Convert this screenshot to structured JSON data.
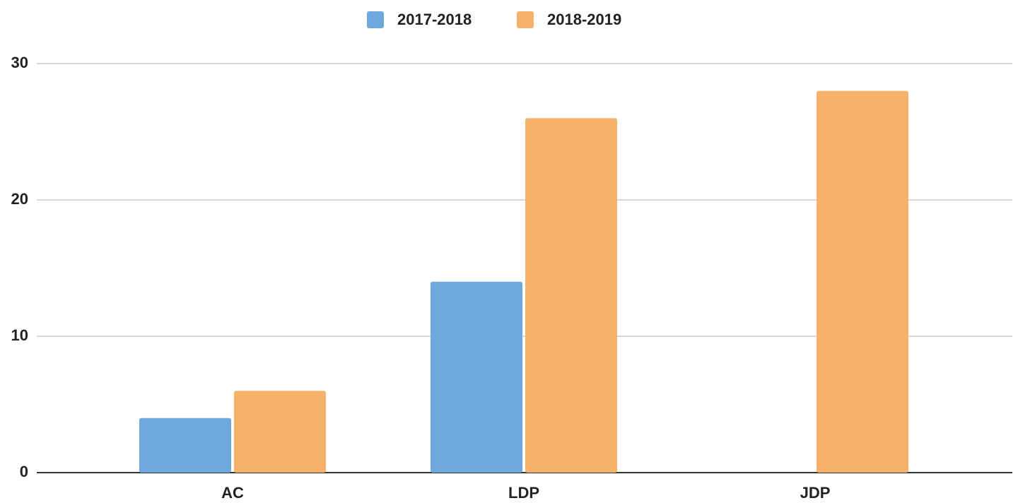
{
  "chart_data": {
    "type": "bar",
    "categories": [
      "AC",
      "LDP",
      "JDP"
    ],
    "series": [
      {
        "name": "2017-2018",
        "color": "#6fa8dc",
        "values": [
          4,
          14,
          null
        ]
      },
      {
        "name": "2018-2019",
        "color": "#f6b26b",
        "values": [
          6,
          26,
          28
        ]
      }
    ],
    "ylim": [
      0,
      30
    ],
    "yticks": [
      0,
      10,
      20,
      30
    ],
    "grid": true,
    "legend": "top"
  }
}
